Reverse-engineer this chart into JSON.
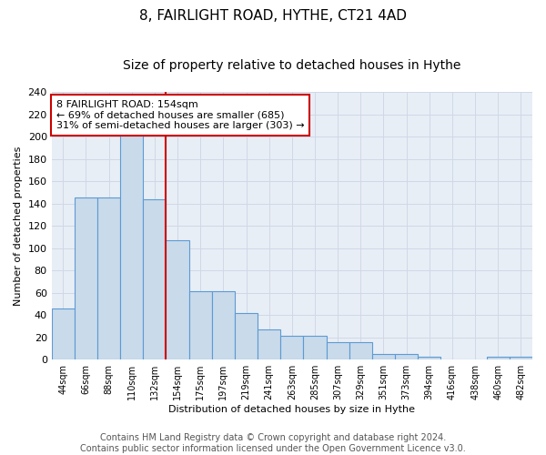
{
  "title_line1": "8, FAIRLIGHT ROAD, HYTHE, CT21 4AD",
  "title_line2": "Size of property relative to detached houses in Hythe",
  "xlabel": "Distribution of detached houses by size in Hythe",
  "ylabel": "Number of detached properties",
  "bar_labels": [
    "44sqm",
    "66sqm",
    "88sqm",
    "110sqm",
    "132sqm",
    "154sqm",
    "175sqm",
    "197sqm",
    "219sqm",
    "241sqm",
    "263sqm",
    "285sqm",
    "307sqm",
    "329sqm",
    "351sqm",
    "373sqm",
    "394sqm",
    "416sqm",
    "438sqm",
    "460sqm",
    "482sqm"
  ],
  "bar_values": [
    46,
    145,
    145,
    201,
    144,
    107,
    61,
    61,
    42,
    27,
    21,
    21,
    16,
    16,
    5,
    5,
    3,
    0,
    0,
    3,
    3
  ],
  "bar_color": "#c9daea",
  "bar_edge_color": "#5b9bd5",
  "vline_x": 4.5,
  "annotation_line1": "8 FAIRLIGHT ROAD: 154sqm",
  "annotation_line2": "← 69% of detached houses are smaller (685)",
  "annotation_line3": "31% of semi-detached houses are larger (303) →",
  "annotation_box_color": "#ffffff",
  "annotation_box_edge_color": "#cc0000",
  "vline_color": "#cc0000",
  "ylim": [
    0,
    240
  ],
  "yticks": [
    0,
    20,
    40,
    60,
    80,
    100,
    120,
    140,
    160,
    180,
    200,
    220,
    240
  ],
  "grid_color": "#d0d8e8",
  "background_color": "#e8eef5",
  "footer_line1": "Contains HM Land Registry data © Crown copyright and database right 2024.",
  "footer_line2": "Contains public sector information licensed under the Open Government Licence v3.0.",
  "title_fontsize": 11,
  "subtitle_fontsize": 10,
  "annotation_fontsize": 8.0,
  "footer_fontsize": 7,
  "ylabel_fontsize": 8,
  "xlabel_fontsize": 8
}
